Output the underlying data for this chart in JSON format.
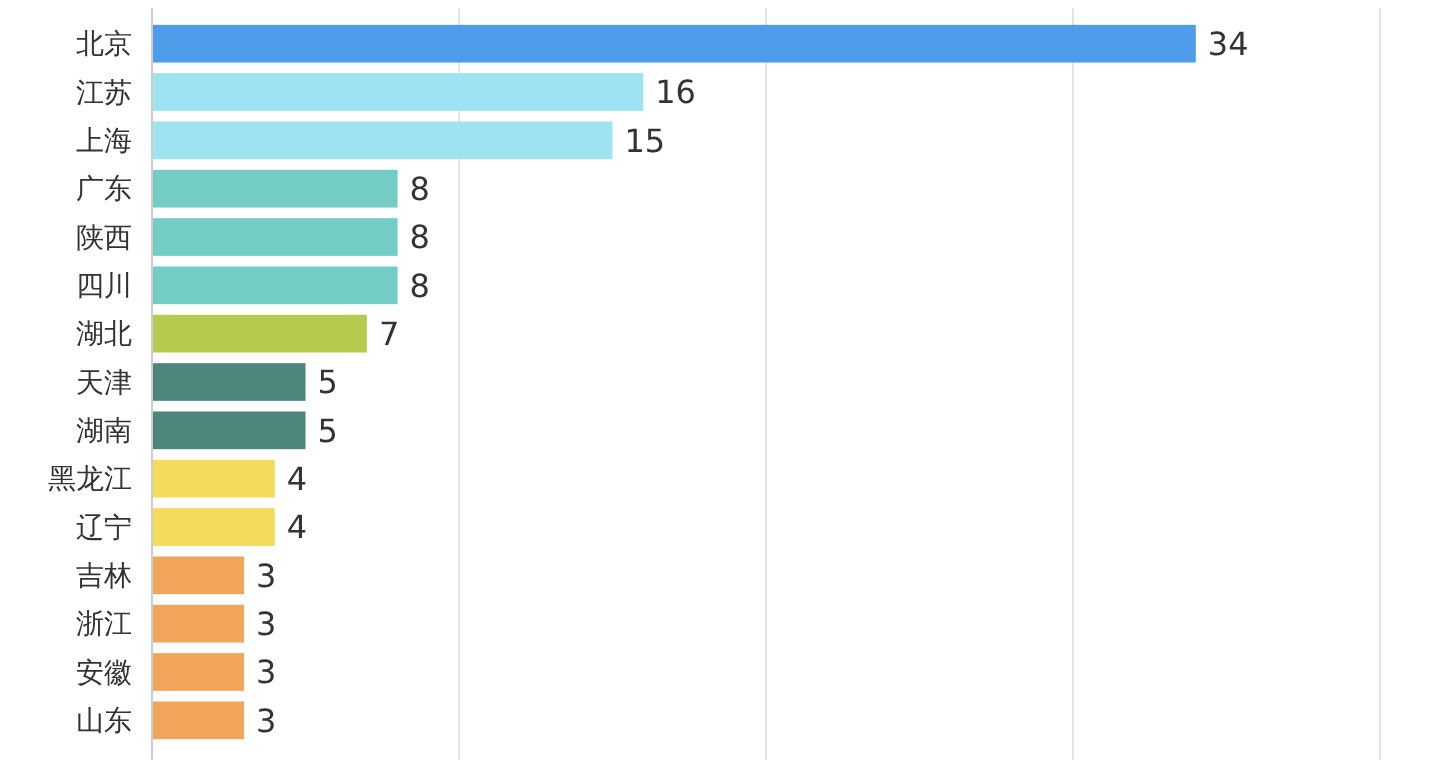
{
  "chart_data": {
    "type": "bar",
    "orientation": "horizontal",
    "categories": [
      "北京",
      "江苏",
      "上海",
      "广东",
      "陕西",
      "四川",
      "湖北",
      "天津",
      "湖南",
      "黑龙江",
      "辽宁",
      "吉林",
      "浙江",
      "安徽",
      "山东"
    ],
    "values": [
      34,
      16,
      15,
      8,
      8,
      8,
      7,
      5,
      5,
      4,
      4,
      3,
      3,
      3,
      3
    ],
    "colors": [
      "#4e9bea",
      "#9de3f2",
      "#9de3f2",
      "#74cdc4",
      "#74cdc4",
      "#74cdc4",
      "#b5cb4e",
      "#4f867b",
      "#4f867b",
      "#f6da5a",
      "#f6da5a",
      "#f0a55b",
      "#f0a55b",
      "#f0a55b",
      "#f0a55b"
    ],
    "xlim": [
      0,
      40
    ],
    "xticks": [
      {
        "value": 0,
        "label": null
      },
      {
        "value": 10,
        "label": null
      },
      {
        "value": 20,
        "label": null
      },
      {
        "value": 30,
        "label": null
      },
      {
        "value": 40,
        "label": null
      }
    ],
    "tick_labels": "y",
    "grid": "x",
    "data_labels": true
  }
}
